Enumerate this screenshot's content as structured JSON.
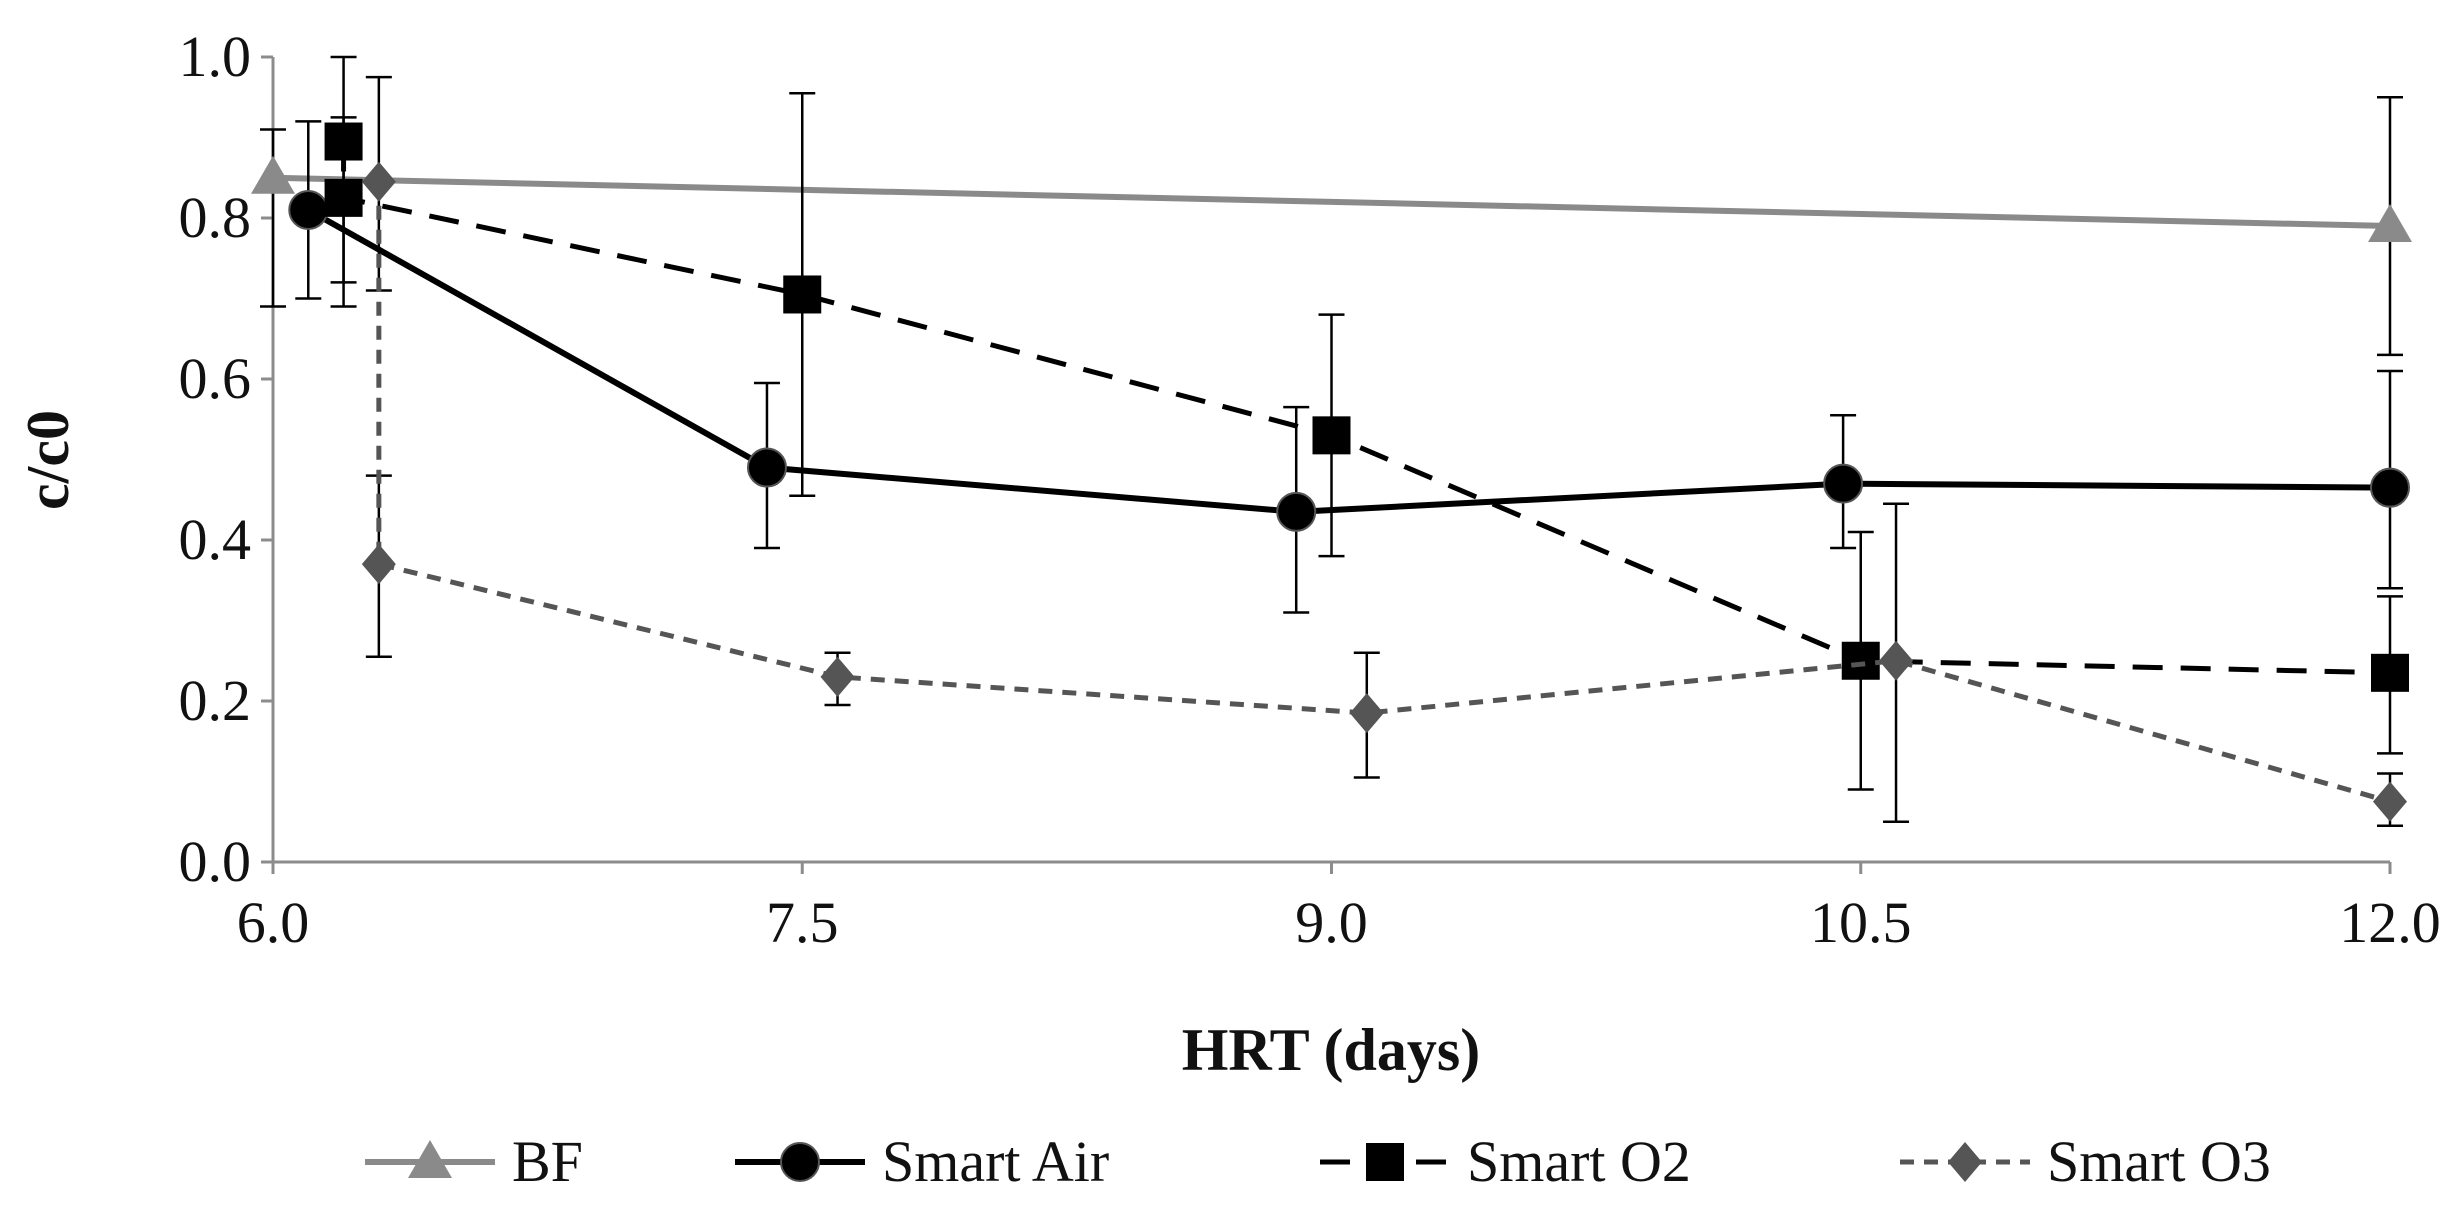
{
  "chart_data": {
    "type": "line",
    "title": "",
    "xlabel": "HRT (days)",
    "ylabel": "c/c0",
    "xlim": [
      6.0,
      12.0
    ],
    "ylim": [
      0.0,
      1.0
    ],
    "x_ticks": [
      "6.0",
      "7.5",
      "9.0",
      "10.5",
      "12.0"
    ],
    "y_ticks": [
      "0.0",
      "0.2",
      "0.4",
      "0.6",
      "0.8",
      "1.0"
    ],
    "grid": false,
    "legend_position": "bottom",
    "series": [
      {
        "name": "BF",
        "color": "#8a8a8a",
        "line_style": "solid",
        "marker": "triangle",
        "x": [
          6.0,
          12.0
        ],
        "y": [
          0.85,
          0.79
        ],
        "err_low": [
          0.69,
          0.63
        ],
        "err_high": [
          0.91,
          0.95
        ]
      },
      {
        "name": "Smart Air",
        "color": "#000000",
        "line_style": "solid",
        "marker": "circle",
        "x": [
          6.1,
          7.4,
          8.9,
          10.45,
          12.0
        ],
        "y": [
          0.81,
          0.49,
          0.435,
          0.47,
          0.465
        ],
        "err_low": [
          0.7,
          0.39,
          0.31,
          0.39,
          0.34
        ],
        "err_high": [
          0.92,
          0.595,
          0.565,
          0.555,
          0.61
        ]
      },
      {
        "name": "Smart O2",
        "color": "#000000",
        "line_style": "dashed",
        "marker": "square",
        "x": [
          6.2,
          6.2,
          7.5,
          9.0,
          10.5,
          12.0
        ],
        "y": [
          0.895,
          0.825,
          0.705,
          0.53,
          0.25,
          0.235
        ],
        "err_low": [
          0.72,
          0.69,
          0.455,
          0.38,
          0.09,
          0.135
        ],
        "err_high": [
          1.0,
          0.925,
          0.955,
          0.68,
          0.41,
          0.33
        ]
      },
      {
        "name": "Smart O3",
        "color": "#555555",
        "line_style": "dotted",
        "marker": "diamond",
        "x": [
          6.3,
          6.3,
          7.6,
          9.1,
          10.6,
          12.0
        ],
        "y": [
          0.845,
          0.37,
          0.23,
          0.185,
          0.25,
          0.075
        ],
        "err_low": [
          0.71,
          0.255,
          0.195,
          0.105,
          0.05,
          0.045
        ],
        "err_high": [
          0.975,
          0.48,
          0.26,
          0.26,
          0.445,
          0.11
        ]
      }
    ]
  }
}
